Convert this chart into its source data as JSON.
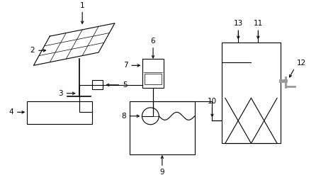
{
  "bg_color": "#ffffff",
  "line_color": "#000000",
  "gray_color": "#999999"
}
